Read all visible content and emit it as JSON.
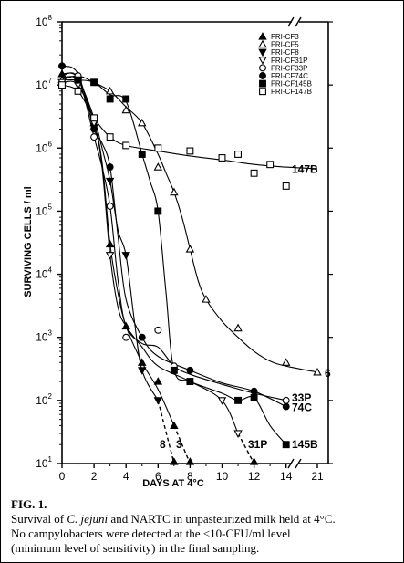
{
  "chart_data": {
    "type": "line",
    "title": "",
    "xlabel": "DAYS AT 4°C",
    "ylabel": "SURVIVING CELLS / ml",
    "y_scale": "log",
    "ylim": [
      10,
      100000000
    ],
    "x_axis_break_between": [
      14,
      21
    ],
    "grid": false,
    "legend_position": "top-right",
    "x_ticks": [
      "0",
      "2",
      "4",
      "6",
      "8",
      "10",
      "12",
      "14",
      "21"
    ],
    "y_ticks": [
      {
        "value": 100000000,
        "base": "10",
        "exp": "8"
      },
      {
        "value": 10000000,
        "base": "10",
        "exp": "7"
      },
      {
        "value": 1000000,
        "base": "10",
        "exp": "6"
      },
      {
        "value": 100000,
        "base": "10",
        "exp": "5"
      },
      {
        "value": 10000,
        "base": "10",
        "exp": "4"
      },
      {
        "value": 1000,
        "base": "10",
        "exp": "3"
      },
      {
        "value": 100,
        "base": "10",
        "exp": "2"
      },
      {
        "value": 10,
        "base": "10",
        "exp": "1"
      }
    ],
    "series": [
      {
        "name": "FRI-CF3",
        "marker": "triangle-filled",
        "end_label": "3",
        "points": [
          [
            0,
            15000000
          ],
          [
            1,
            13000000
          ],
          [
            2,
            2500000
          ],
          [
            3,
            30000
          ],
          [
            4,
            1500
          ],
          [
            5,
            400
          ],
          [
            6,
            200
          ],
          [
            7,
            40
          ]
        ],
        "curve": [
          [
            0,
            15000000
          ],
          [
            1,
            13000000
          ],
          [
            2,
            2500000
          ],
          [
            2.5,
            600000
          ],
          [
            3,
            30000
          ],
          [
            3.5,
            5000
          ],
          [
            4,
            1500
          ],
          [
            5,
            400
          ],
          [
            6,
            150
          ],
          [
            7,
            40
          ]
        ],
        "dashed_tail": [
          [
            7,
            40
          ],
          [
            8,
            10
          ]
        ]
      },
      {
        "name": "FRI-CF5",
        "marker": "triangle-open",
        "end_label": "6",
        "points": [
          [
            0,
            12000000
          ],
          [
            1,
            14000000
          ],
          [
            3,
            8000000
          ],
          [
            4,
            4000000
          ],
          [
            5,
            2500000
          ],
          [
            6,
            500000
          ],
          [
            7,
            200000
          ],
          [
            8,
            25000
          ],
          [
            9,
            4000
          ],
          [
            11,
            1400
          ],
          [
            14,
            400
          ],
          [
            21,
            280
          ]
        ],
        "curve": [
          [
            0,
            12000000
          ],
          [
            1,
            14000000
          ],
          [
            2,
            11000000
          ],
          [
            3,
            8000000
          ],
          [
            4,
            4500000
          ],
          [
            5,
            2500000
          ],
          [
            6,
            800000
          ],
          [
            6.5,
            400000
          ],
          [
            7,
            200000
          ],
          [
            7.5,
            80000
          ],
          [
            8,
            25000
          ],
          [
            8.5,
            8000
          ],
          [
            9,
            4000
          ],
          [
            10,
            1800
          ],
          [
            11,
            1000
          ],
          [
            12,
            600
          ],
          [
            13,
            420
          ],
          [
            14,
            350
          ],
          [
            21,
            280
          ]
        ]
      },
      {
        "name": "FRI-CF8",
        "marker": "triangle-down-filled",
        "end_label": "8",
        "points": [
          [
            1,
            12000000
          ],
          [
            2,
            3000000
          ],
          [
            3,
            300000
          ],
          [
            4,
            20000
          ],
          [
            5,
            300
          ],
          [
            6,
            100
          ]
        ],
        "curve": [
          [
            0,
            13000000
          ],
          [
            1,
            12000000
          ],
          [
            2,
            3000000
          ],
          [
            2.5,
            1000000
          ],
          [
            3,
            300000
          ],
          [
            3.5,
            50000
          ],
          [
            4,
            20000
          ],
          [
            4.5,
            2000
          ],
          [
            5,
            300
          ],
          [
            6,
            100
          ]
        ],
        "dashed_tail": [
          [
            6,
            100
          ],
          [
            7,
            10
          ]
        ]
      },
      {
        "name": "FRI-CF31P",
        "marker": "triangle-down-open",
        "end_label": "31P",
        "points": [
          [
            0,
            11000000
          ],
          [
            1,
            10000000
          ],
          [
            2,
            2500000
          ],
          [
            3,
            20000
          ],
          [
            10,
            100
          ],
          [
            11,
            30
          ]
        ],
        "curve": [
          [
            0,
            11000000
          ],
          [
            1,
            10000000
          ],
          [
            2,
            2500000
          ],
          [
            2.5,
            500000
          ],
          [
            3,
            20000
          ],
          [
            3.5,
            3000
          ],
          [
            4,
            1500
          ],
          [
            5,
            700
          ],
          [
            6,
            350
          ],
          [
            8,
            200
          ],
          [
            10,
            100
          ],
          [
            11,
            30
          ]
        ],
        "dashed_tail": [
          [
            11,
            30
          ],
          [
            12,
            10
          ]
        ]
      },
      {
        "name": "FRI-CF33P",
        "marker": "circle-open",
        "end_label": "33P",
        "points": [
          [
            1,
            14000000
          ],
          [
            2,
            1500000
          ],
          [
            3,
            120000
          ],
          [
            4,
            1000
          ],
          [
            6,
            1300
          ],
          [
            7,
            350
          ],
          [
            14,
            100
          ]
        ],
        "curve": [
          [
            0,
            14000000
          ],
          [
            1,
            13000000
          ],
          [
            2,
            1500000
          ],
          [
            2.5,
            500000
          ],
          [
            3,
            120000
          ],
          [
            3.5,
            8000
          ],
          [
            4,
            1500
          ],
          [
            5,
            800
          ],
          [
            6,
            700
          ],
          [
            7,
            350
          ],
          [
            8,
            260
          ],
          [
            10,
            180
          ],
          [
            12,
            130
          ],
          [
            14,
            100
          ]
        ]
      },
      {
        "name": "FRI-CF74C",
        "marker": "circle-filled",
        "end_label": "74C",
        "points": [
          [
            0,
            20000000
          ],
          [
            2,
            2000000
          ],
          [
            3,
            500000
          ],
          [
            5,
            1000
          ],
          [
            8,
            300
          ],
          [
            12,
            140
          ],
          [
            14,
            80
          ]
        ],
        "curve": [
          [
            0,
            20000000
          ],
          [
            1,
            15000000
          ],
          [
            2,
            2000000
          ],
          [
            2.5,
            1200000
          ],
          [
            3,
            500000
          ],
          [
            3.5,
            40000
          ],
          [
            4,
            4000
          ],
          [
            5,
            1000
          ],
          [
            6,
            500
          ],
          [
            8,
            300
          ],
          [
            10,
            190
          ],
          [
            12,
            140
          ],
          [
            14,
            80
          ]
        ]
      },
      {
        "name": "FRI-CF145B",
        "marker": "square-filled",
        "end_label": "145B",
        "points": [
          [
            1,
            12000000
          ],
          [
            2,
            11000000
          ],
          [
            3,
            6000000
          ],
          [
            4,
            6000000
          ],
          [
            5,
            800000
          ],
          [
            6,
            100000
          ],
          [
            7,
            300
          ],
          [
            8,
            200
          ],
          [
            11,
            100
          ],
          [
            12,
            110
          ],
          [
            14,
            20
          ]
        ],
        "curve": [
          [
            0,
            12000000
          ],
          [
            1,
            12000000
          ],
          [
            2,
            11000000
          ],
          [
            3,
            7000000
          ],
          [
            4,
            5500000
          ],
          [
            5,
            800000
          ],
          [
            5.5,
            300000
          ],
          [
            6,
            100000
          ],
          [
            6.5,
            5000
          ],
          [
            7,
            300
          ],
          [
            8,
            200
          ],
          [
            10,
            130
          ],
          [
            11,
            100
          ],
          [
            12,
            110
          ],
          [
            13,
            40
          ],
          [
            14,
            20
          ]
        ]
      },
      {
        "name": "FRI-CF147B",
        "marker": "square-open",
        "end_label": "147B",
        "points": [
          [
            0,
            10000000
          ],
          [
            1,
            8000000
          ],
          [
            2,
            3000000
          ],
          [
            3,
            1500000
          ],
          [
            4,
            1100000
          ],
          [
            6,
            1000000
          ],
          [
            8,
            900000
          ],
          [
            10,
            700000
          ],
          [
            11,
            800000
          ],
          [
            12,
            400000
          ],
          [
            13,
            550000
          ],
          [
            14,
            250000
          ]
        ],
        "curve": [
          [
            0,
            10000000
          ],
          [
            1,
            8000000
          ],
          [
            2,
            3000000
          ],
          [
            3,
            1500000
          ],
          [
            4,
            1100000
          ],
          [
            6,
            900000
          ],
          [
            8,
            750000
          ],
          [
            10,
            650000
          ],
          [
            12,
            550000
          ],
          [
            14,
            500000
          ],
          [
            15,
            470000
          ]
        ]
      }
    ]
  },
  "caption": {
    "fig_label": "FIG. 1.",
    "line1_before": "Survival of ",
    "line1_italic": "C. jejuni",
    "line1_after": " and NARTC in unpasteurized  milk  held at 4°C.",
    "line2": "No  campylobacters were detected at the <10-CFU/ml level",
    "line3": "(minimum level of sensitivity)  in the final sampling."
  }
}
